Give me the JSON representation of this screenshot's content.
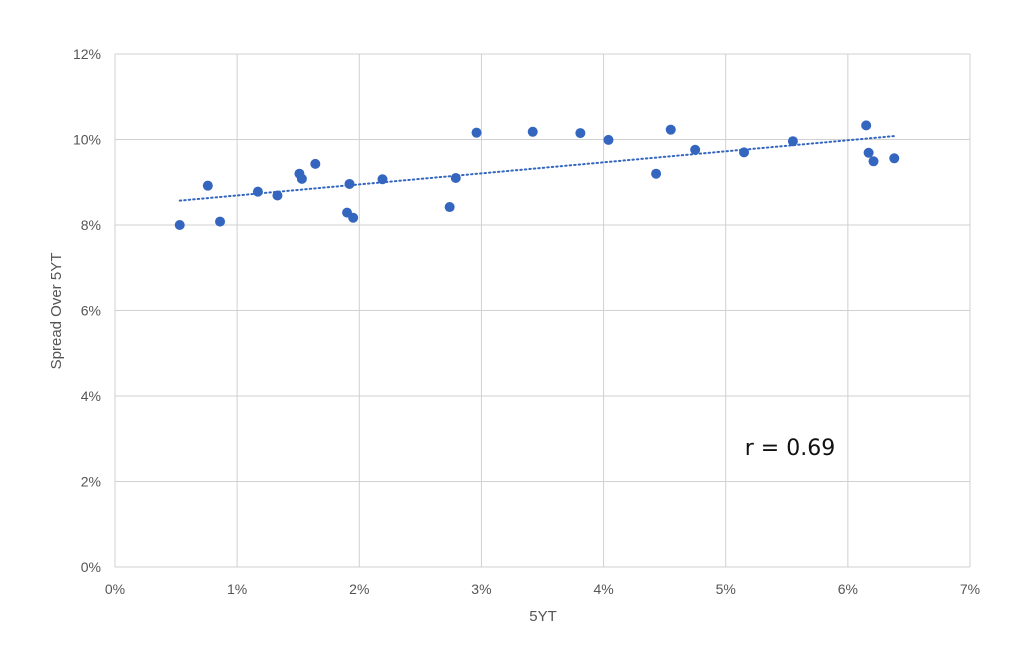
{
  "chart_data": {
    "type": "scatter",
    "xlabel": "5YT",
    "ylabel": "Spread Over 5YT",
    "xlim": [
      0,
      7
    ],
    "ylim": [
      0,
      12
    ],
    "x_ticks": [
      "0%",
      "1%",
      "2%",
      "3%",
      "4%",
      "5%",
      "6%",
      "7%"
    ],
    "y_ticks": [
      "0%",
      "2%",
      "4%",
      "6%",
      "8%",
      "10%",
      "12%"
    ],
    "grid": true,
    "series": [
      {
        "color": "#3466bf",
        "points": [
          {
            "x": 0.53,
            "y": 8.0
          },
          {
            "x": 0.76,
            "y": 8.92
          },
          {
            "x": 0.86,
            "y": 8.08
          },
          {
            "x": 1.17,
            "y": 8.78
          },
          {
            "x": 1.33,
            "y": 8.69
          },
          {
            "x": 1.51,
            "y": 9.2
          },
          {
            "x": 1.53,
            "y": 9.08
          },
          {
            "x": 1.64,
            "y": 9.43
          },
          {
            "x": 1.9,
            "y": 8.29
          },
          {
            "x": 1.92,
            "y": 8.96
          },
          {
            "x": 1.95,
            "y": 8.17
          },
          {
            "x": 2.19,
            "y": 9.07
          },
          {
            "x": 2.74,
            "y": 8.42
          },
          {
            "x": 2.79,
            "y": 9.1
          },
          {
            "x": 2.96,
            "y": 10.16
          },
          {
            "x": 3.42,
            "y": 10.18
          },
          {
            "x": 3.81,
            "y": 10.15
          },
          {
            "x": 4.04,
            "y": 9.99
          },
          {
            "x": 4.43,
            "y": 9.2
          },
          {
            "x": 4.55,
            "y": 10.23
          },
          {
            "x": 4.75,
            "y": 9.76
          },
          {
            "x": 5.15,
            "y": 9.7
          },
          {
            "x": 5.55,
            "y": 9.96
          },
          {
            "x": 6.15,
            "y": 10.33
          },
          {
            "x": 6.17,
            "y": 9.69
          },
          {
            "x": 6.21,
            "y": 9.49
          },
          {
            "x": 6.38,
            "y": 9.56
          }
        ]
      }
    ],
    "trendline": {
      "x": [
        0.53,
        6.38
      ],
      "y": [
        8.57,
        10.08
      ],
      "style": "dotted",
      "color": "#3466bf"
    },
    "annotation": "r = 0.69"
  }
}
